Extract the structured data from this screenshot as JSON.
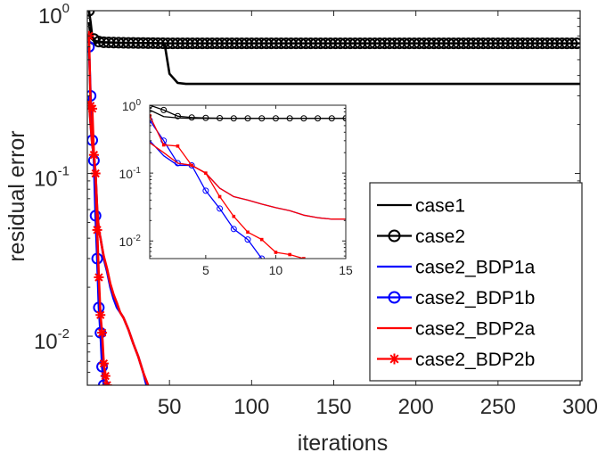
{
  "chart_data": [
    {
      "id": "main",
      "type": "line",
      "y_scale": "log",
      "xlabel": "iterations",
      "ylabel": "residual error",
      "xlim": [
        0,
        300
      ],
      "ylim": [
        0.005,
        1
      ],
      "x_ticks": [
        {
          "value": 50,
          "label": "50"
        },
        {
          "value": 100,
          "label": "100"
        },
        {
          "value": 150,
          "label": "150"
        },
        {
          "value": 200,
          "label": "200"
        },
        {
          "value": 250,
          "label": "250"
        },
        {
          "value": 300,
          "label": "300"
        }
      ],
      "y_ticks": [
        {
          "value": 1,
          "base": "10",
          "exp": "0"
        },
        {
          "value": 0.1,
          "base": "10",
          "exp": "-1"
        },
        {
          "value": 0.01,
          "base": "10",
          "exp": "-2"
        }
      ],
      "legend": {
        "position": "bottom-right",
        "entries": [
          {
            "label": "case1",
            "color": "#000000",
            "marker": "none"
          },
          {
            "label": "case2",
            "color": "#000000",
            "marker": "circle"
          },
          {
            "label": "case2_BDP1a",
            "color": "#0000ff",
            "marker": "none"
          },
          {
            "label": "case2_BDP1b",
            "color": "#0000ff",
            "marker": "circle"
          },
          {
            "label": "case2_BDP2a",
            "color": "#ff0000",
            "marker": "none"
          },
          {
            "label": "case2_BDP2b",
            "color": "#ff0000",
            "marker": "asterisk"
          }
        ]
      },
      "series": [
        {
          "name": "case1",
          "color": "#000000",
          "marker": "none",
          "points": [
            [
              1,
              0.85
            ],
            [
              2,
              0.68
            ],
            [
              5,
              0.64
            ],
            [
              20,
              0.635
            ],
            [
              47,
              0.63
            ],
            [
              50,
              0.41
            ],
            [
              55,
              0.36
            ],
            [
              60,
              0.355
            ],
            [
              100,
              0.355
            ],
            [
              200,
              0.355
            ],
            [
              300,
              0.355
            ]
          ]
        },
        {
          "name": "case2",
          "color": "#000000",
          "marker": "circle",
          "marker_every": 3,
          "points": [
            [
              1,
              1.0
            ],
            [
              2,
              0.85
            ],
            [
              3,
              0.69
            ],
            [
              5,
              0.65
            ],
            [
              10,
              0.64
            ],
            [
              20,
              0.635
            ],
            [
              50,
              0.63
            ],
            [
              100,
              0.63
            ],
            [
              200,
              0.63
            ],
            [
              300,
              0.63
            ]
          ]
        },
        {
          "name": "case2_BDP1a",
          "color": "#0000ff",
          "marker": "none",
          "points": [
            [
              1,
              0.3
            ],
            [
              2,
              0.2
            ],
            [
              3,
              0.15
            ],
            [
              4,
              0.13
            ],
            [
              5,
              0.1
            ],
            [
              6,
              0.06
            ],
            [
              7,
              0.045
            ],
            [
              8,
              0.04
            ],
            [
              9,
              0.035
            ],
            [
              10,
              0.03
            ],
            [
              12,
              0.025
            ],
            [
              14,
              0.02
            ],
            [
              16,
              0.017
            ],
            [
              18,
              0.015
            ],
            [
              20,
              0.014
            ],
            [
              22,
              0.013
            ],
            [
              25,
              0.011
            ],
            [
              28,
              0.009
            ],
            [
              31,
              0.0075
            ],
            [
              34,
              0.006
            ],
            [
              36,
              0.005
            ]
          ]
        },
        {
          "name": "case2_BDP1b",
          "color": "#0000ff",
          "marker": "circle",
          "points": [
            [
              1,
              0.6
            ],
            [
              2,
              0.3
            ],
            [
              3,
              0.16
            ],
            [
              4,
              0.12
            ],
            [
              5,
              0.055
            ],
            [
              6,
              0.03
            ],
            [
              7,
              0.015
            ],
            [
              8,
              0.0105
            ],
            [
              9,
              0.0065
            ],
            [
              10,
              0.005
            ]
          ]
        },
        {
          "name": "case2_BDP2a",
          "color": "#ff0000",
          "marker": "none",
          "points": [
            [
              1,
              0.28
            ],
            [
              2,
              0.2
            ],
            [
              3,
              0.15
            ],
            [
              4,
              0.13
            ],
            [
              5,
              0.1
            ],
            [
              6,
              0.06
            ],
            [
              7,
              0.045
            ],
            [
              8,
              0.04
            ],
            [
              9,
              0.035
            ],
            [
              10,
              0.031
            ],
            [
              12,
              0.026
            ],
            [
              14,
              0.021
            ],
            [
              16,
              0.018
            ],
            [
              18,
              0.016
            ],
            [
              20,
              0.014
            ],
            [
              22,
              0.013
            ],
            [
              25,
              0.011
            ],
            [
              28,
              0.009
            ],
            [
              31,
              0.0075
            ],
            [
              34,
              0.006
            ],
            [
              37,
              0.005
            ]
          ]
        },
        {
          "name": "case2_BDP2b",
          "color": "#ff0000",
          "marker": "asterisk",
          "points": [
            [
              1,
              0.7
            ],
            [
              2,
              0.26
            ],
            [
              3,
              0.25
            ],
            [
              4,
              0.13
            ],
            [
              5,
              0.1
            ],
            [
              6,
              0.045
            ],
            [
              7,
              0.023
            ],
            [
              8,
              0.0135
            ],
            [
              9,
              0.0105
            ],
            [
              10,
              0.0068
            ],
            [
              11,
              0.0057
            ],
            [
              12,
              0.005
            ]
          ]
        }
      ]
    },
    {
      "id": "inset",
      "type": "line",
      "y_scale": "log",
      "xlim": [
        1,
        15
      ],
      "ylim": [
        0.0055,
        1
      ],
      "x_ticks": [
        {
          "value": 5,
          "label": "5"
        },
        {
          "value": 10,
          "label": "10"
        },
        {
          "value": 15,
          "label": "15"
        }
      ],
      "y_ticks": [
        {
          "value": 1,
          "base": "10",
          "exp": "0"
        },
        {
          "value": 0.1,
          "base": "10",
          "exp": "-1"
        },
        {
          "value": 0.01,
          "base": "10",
          "exp": "-2"
        }
      ],
      "series": [
        {
          "name": "case1",
          "color": "#000000",
          "marker": "none",
          "points": [
            [
              1,
              0.85
            ],
            [
              2,
              0.68
            ],
            [
              3,
              0.65
            ],
            [
              4,
              0.64
            ],
            [
              15,
              0.64
            ]
          ]
        },
        {
          "name": "case2",
          "color": "#000000",
          "marker": "circle",
          "points": [
            [
              1,
              1.0
            ],
            [
              2,
              0.85
            ],
            [
              3,
              0.69
            ],
            [
              4,
              0.66
            ],
            [
              5,
              0.65
            ],
            [
              6,
              0.645
            ],
            [
              7,
              0.64
            ],
            [
              8,
              0.64
            ],
            [
              9,
              0.64
            ],
            [
              10,
              0.64
            ],
            [
              11,
              0.64
            ],
            [
              12,
              0.64
            ],
            [
              13,
              0.64
            ],
            [
              14,
              0.64
            ],
            [
              15,
              0.64
            ]
          ]
        },
        {
          "name": "case2_BDP1a",
          "color": "#0000ff",
          "marker": "none",
          "points": [
            [
              1,
              0.3
            ],
            [
              2,
              0.18
            ],
            [
              3,
              0.13
            ],
            [
              4,
              0.13
            ],
            [
              5,
              0.1
            ],
            [
              6,
              0.06
            ],
            [
              7,
              0.045
            ],
            [
              8,
              0.04
            ],
            [
              9,
              0.035
            ],
            [
              10,
              0.031
            ],
            [
              11,
              0.028
            ],
            [
              12,
              0.024
            ],
            [
              13,
              0.022
            ],
            [
              14,
              0.021
            ],
            [
              15,
              0.021
            ]
          ]
        },
        {
          "name": "case2_BDP1b",
          "color": "#0000ff",
          "marker": "circle",
          "points": [
            [
              1,
              0.6
            ],
            [
              2,
              0.3
            ],
            [
              3,
              0.14
            ],
            [
              4,
              0.13
            ],
            [
              5,
              0.055
            ],
            [
              6,
              0.03
            ],
            [
              7,
              0.015
            ],
            [
              8,
              0.0105
            ],
            [
              9,
              0.0055
            ]
          ]
        },
        {
          "name": "case2_BDP2a",
          "color": "#ff0000",
          "marker": "none",
          "points": [
            [
              1,
              0.28
            ],
            [
              2,
              0.2
            ],
            [
              3,
              0.14
            ],
            [
              4,
              0.13
            ],
            [
              5,
              0.1
            ],
            [
              6,
              0.06
            ],
            [
              7,
              0.045
            ],
            [
              8,
              0.04
            ],
            [
              9,
              0.035
            ],
            [
              10,
              0.031
            ],
            [
              11,
              0.028
            ],
            [
              12,
              0.024
            ],
            [
              13,
              0.022
            ],
            [
              14,
              0.021
            ],
            [
              15,
              0.021
            ]
          ]
        },
        {
          "name": "case2_BDP2b",
          "color": "#ff0000",
          "marker": "asterisk",
          "points": [
            [
              1,
              0.7
            ],
            [
              2,
              0.26
            ],
            [
              3,
              0.25
            ],
            [
              4,
              0.13
            ],
            [
              5,
              0.1
            ],
            [
              6,
              0.045
            ],
            [
              7,
              0.023
            ],
            [
              8,
              0.0135
            ],
            [
              9,
              0.0105
            ],
            [
              10,
              0.0068
            ],
            [
              11,
              0.0063
            ],
            [
              12,
              0.0055
            ]
          ]
        }
      ]
    }
  ]
}
